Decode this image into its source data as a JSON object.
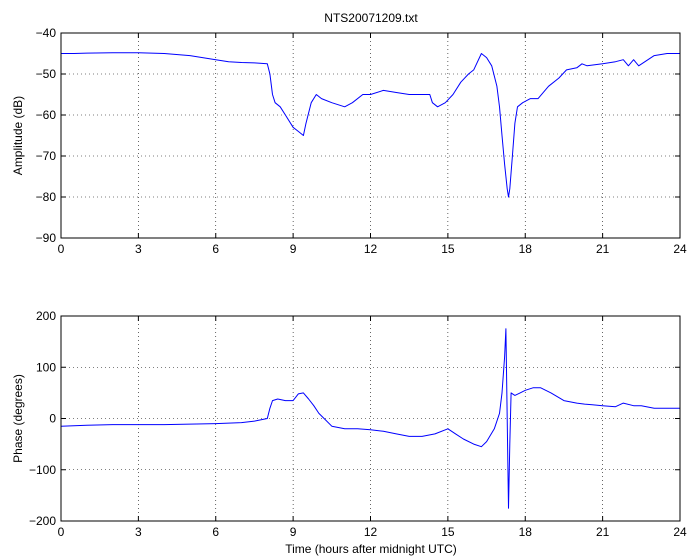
{
  "figure": {
    "title": "NTS20071209.txt",
    "xlabel": "Time (hours after midnight UTC)"
  },
  "colors": {
    "line": "#0000ff",
    "axes": "#000000",
    "grid": "#000000",
    "background": "#ffffff"
  },
  "chart_data": [
    {
      "type": "line",
      "title": "NTS20071209.txt",
      "xlabel": "",
      "ylabel": "Amplitude (dB)",
      "xlim": [
        0,
        24
      ],
      "ylim": [
        -90,
        -40
      ],
      "xticks": [
        0,
        3,
        6,
        9,
        12,
        15,
        18,
        21,
        24
      ],
      "yticks": [
        -90,
        -80,
        -70,
        -60,
        -50,
        -40
      ],
      "grid": true,
      "series": [
        {
          "x": [
            0,
            0.5,
            1,
            2,
            3,
            4,
            5,
            6,
            6.5,
            7,
            7.5,
            8,
            8.1,
            8.2,
            8.3,
            8.5,
            8.7,
            9,
            9.2,
            9.4,
            9.5,
            9.7,
            9.9,
            10.1,
            10.5,
            11,
            11.3,
            11.7,
            12,
            12.5,
            13,
            13.5,
            14,
            14.3,
            14.4,
            14.6,
            14.9,
            15.2,
            15.5,
            15.8,
            16,
            16.3,
            16.5,
            16.7,
            16.9,
            17,
            17.1,
            17.2,
            17.3,
            17.35,
            17.4,
            17.5,
            17.6,
            17.7,
            17.9,
            18.2,
            18.5,
            18.9,
            19.3,
            19.6,
            20,
            20.2,
            20.4,
            21,
            21.5,
            21.8,
            22,
            22.2,
            22.4,
            23,
            23.5,
            24
          ],
          "y": [
            -45,
            -45,
            -44.9,
            -44.8,
            -44.8,
            -45,
            -45.5,
            -46.5,
            -47,
            -47.2,
            -47.3,
            -47.5,
            -50,
            -55,
            -57,
            -58,
            -60,
            -63,
            -64,
            -65,
            -62,
            -57,
            -55,
            -56,
            -57,
            -58,
            -57,
            -55,
            -55,
            -54,
            -54.5,
            -55,
            -55,
            -55,
            -57,
            -58,
            -57,
            -55,
            -52,
            -50,
            -49,
            -45,
            -46,
            -48,
            -53,
            -58,
            -65,
            -72,
            -78,
            -80,
            -78,
            -70,
            -62,
            -58,
            -57,
            -56,
            -56,
            -53,
            -51,
            -49,
            -48.5,
            -47.5,
            -48,
            -47.5,
            -47,
            -46.5,
            -48,
            -46.5,
            -48,
            -45.5,
            -45,
            -45
          ]
        }
      ]
    },
    {
      "type": "line",
      "title": "",
      "xlabel": "Time (hours after midnight UTC)",
      "ylabel": "Phase (degrees)",
      "xlim": [
        0,
        24
      ],
      "ylim": [
        -200,
        200
      ],
      "xticks": [
        0,
        3,
        6,
        9,
        12,
        15,
        18,
        21,
        24
      ],
      "yticks": [
        -200,
        -100,
        0,
        100,
        200
      ],
      "grid": true,
      "series": [
        {
          "x": [
            0,
            1,
            2,
            3,
            4,
            5,
            6,
            7,
            7.5,
            8,
            8.1,
            8.2,
            8.4,
            8.7,
            9,
            9.2,
            9.4,
            9.6,
            9.8,
            10,
            10.2,
            10.5,
            11,
            11.5,
            12,
            12.5,
            13,
            13.5,
            14,
            14.5,
            15,
            15.3,
            15.6,
            16,
            16.3,
            16.5,
            16.8,
            17,
            17.1,
            17.2,
            17.25,
            17.3,
            17.35,
            17.4,
            17.45,
            17.6,
            17.8,
            18,
            18.3,
            18.6,
            19,
            19.5,
            20,
            20.3,
            20.6,
            21,
            21.5,
            21.8,
            22.2,
            22.5,
            23,
            23.5,
            24
          ],
          "y": [
            -15,
            -13,
            -12,
            -12,
            -12,
            -11,
            -10,
            -8,
            -5,
            0,
            20,
            35,
            38,
            35,
            35,
            48,
            50,
            38,
            25,
            10,
            0,
            -15,
            -20,
            -20,
            -22,
            -25,
            -30,
            -35,
            -35,
            -30,
            -20,
            -30,
            -40,
            -50,
            -55,
            -45,
            -20,
            10,
            50,
            120,
            175,
            0,
            -175,
            -50,
            50,
            45,
            50,
            55,
            60,
            60,
            50,
            35,
            30,
            28,
            27,
            25,
            23,
            30,
            25,
            25,
            20,
            20,
            20
          ]
        }
      ]
    }
  ]
}
